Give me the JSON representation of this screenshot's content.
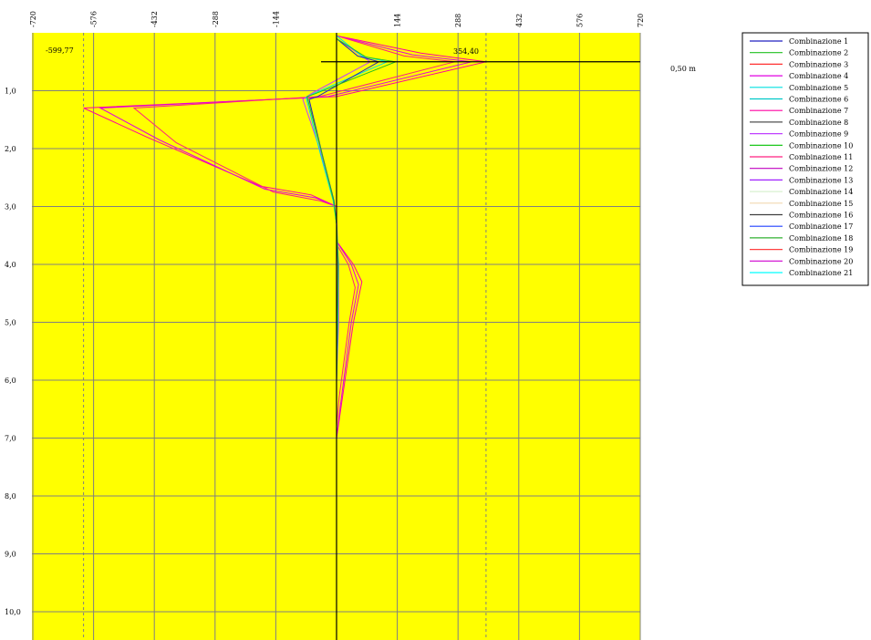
{
  "chart_data": {
    "type": "line",
    "orientation": "vertical-profile",
    "x_ticks": [
      "-720",
      "-576",
      "-432",
      "-288",
      "-144",
      "144",
      "288",
      "432",
      "576",
      "720"
    ],
    "y_ticks": [
      "1,0",
      "2,0",
      "3,0",
      "4,0",
      "5,0",
      "6,0",
      "7,0",
      "8,0",
      "9,0",
      "10,0"
    ],
    "xlim": [
      -720,
      720
    ],
    "ylim": [
      0,
      10.4
    ],
    "grid": true,
    "legend_position": "right",
    "annotations": {
      "min_label": "-599,77",
      "min_value": -599.77,
      "max_label": "354,40",
      "max_value": 354.4,
      "level_label": "0,50 m",
      "level_value": 0.5
    },
    "colors": {
      "background": "#ffff00",
      "grid": "#808080",
      "axis": "#000000",
      "guide": "#808080"
    },
    "series": [
      {
        "name": "Combinazione 1",
        "color": "#2020c0"
      },
      {
        "name": "Combinazione 2",
        "color": "#20c020"
      },
      {
        "name": "Combinazione 3",
        "color": "#ff3030"
      },
      {
        "name": "Combinazione 4",
        "color": "#e000e0"
      },
      {
        "name": "Combinazione 5",
        "color": "#00e0e0"
      },
      {
        "name": "Combinazione 6",
        "color": "#00c8c8"
      },
      {
        "name": "Combinazione 7",
        "color": "#ff00a0"
      },
      {
        "name": "Combinazione 8",
        "color": "#505050"
      },
      {
        "name": "Combinazione 9",
        "color": "#c040ff"
      },
      {
        "name": "Combinazione 10",
        "color": "#00c000"
      },
      {
        "name": "Combinazione 11",
        "color": "#ff2080"
      },
      {
        "name": "Combinazione 12",
        "color": "#c000c0"
      },
      {
        "name": "Combinazione 13",
        "color": "#a020ff"
      },
      {
        "name": "Combinazione 14",
        "color": "#d8f0d0"
      },
      {
        "name": "Combinazione 15",
        "color": "#f0d8b0"
      },
      {
        "name": "Combinazione 16",
        "color": "#404040"
      },
      {
        "name": "Combinazione 17",
        "color": "#2040ff"
      },
      {
        "name": "Combinazione 18",
        "color": "#30b030"
      },
      {
        "name": "Combinazione 19",
        "color": "#ff4040"
      },
      {
        "name": "Combinazione 20",
        "color": "#d000d0"
      },
      {
        "name": "Combinazione 21",
        "color": "#00ffff"
      }
    ],
    "curves": [
      {
        "color": "#ff00a0",
        "points": [
          [
            0,
            0.05
          ],
          [
            200,
            0.35
          ],
          [
            354.4,
            0.5
          ],
          [
            0,
            1.1
          ],
          [
            -599.77,
            1.3
          ],
          [
            -450,
            1.8
          ],
          [
            -180,
            2.65
          ],
          [
            -60,
            2.8
          ],
          [
            0,
            3.0
          ],
          [
            0,
            3.6
          ],
          [
            40,
            4.0
          ],
          [
            60,
            4.3
          ],
          [
            40,
            5.0
          ],
          [
            10,
            6.5
          ],
          [
            0,
            7.0
          ],
          [
            0,
            10.4
          ]
        ]
      },
      {
        "color": "#e000e0",
        "points": [
          [
            0,
            0.05
          ],
          [
            180,
            0.38
          ],
          [
            320,
            0.5
          ],
          [
            -20,
            1.1
          ],
          [
            -560,
            1.3
          ],
          [
            -420,
            1.85
          ],
          [
            -170,
            2.7
          ],
          [
            -50,
            2.85
          ],
          [
            0,
            3.0
          ],
          [
            0,
            3.6
          ],
          [
            35,
            4.0
          ],
          [
            52,
            4.35
          ],
          [
            35,
            5.0
          ],
          [
            8,
            6.5
          ],
          [
            0,
            7.0
          ],
          [
            0,
            10.4
          ]
        ]
      },
      {
        "color": "#ff2080",
        "points": [
          [
            0,
            0.05
          ],
          [
            160,
            0.4
          ],
          [
            280,
            0.5
          ],
          [
            -40,
            1.1
          ],
          [
            -480,
            1.3
          ],
          [
            -380,
            1.9
          ],
          [
            -150,
            2.75
          ],
          [
            -40,
            2.9
          ],
          [
            0,
            3.0
          ],
          [
            0,
            3.65
          ],
          [
            28,
            4.0
          ],
          [
            44,
            4.4
          ],
          [
            30,
            5.0
          ],
          [
            6,
            6.3
          ],
          [
            0,
            6.8
          ],
          [
            0,
            10.4
          ]
        ]
      },
      {
        "color": "#c040ff",
        "points": [
          [
            0,
            0.1
          ],
          [
            40,
            0.3
          ],
          [
            80,
            0.5
          ],
          [
            -60,
            1.05
          ],
          [
            -80,
            1.15
          ],
          [
            -40,
            2.0
          ],
          [
            -10,
            2.8
          ],
          [
            0,
            3.2
          ],
          [
            5,
            4.0
          ],
          [
            5,
            5.0
          ],
          [
            0,
            6.0
          ],
          [
            0,
            10.4
          ]
        ]
      },
      {
        "color": "#00e0e0",
        "points": [
          [
            0,
            0.05
          ],
          [
            60,
            0.4
          ],
          [
            120,
            0.5
          ],
          [
            -55,
            1.05
          ],
          [
            -72,
            1.12
          ],
          [
            -38,
            2.1
          ],
          [
            -8,
            2.9
          ],
          [
            0,
            3.3
          ],
          [
            4,
            4.0
          ],
          [
            3,
            5.0
          ],
          [
            0,
            6.0
          ],
          [
            0,
            10.4
          ]
        ]
      },
      {
        "color": "#2020c0",
        "points": [
          [
            0,
            0.1
          ],
          [
            50,
            0.4
          ],
          [
            100,
            0.5
          ],
          [
            -45,
            1.1
          ],
          [
            -65,
            1.15
          ],
          [
            -34,
            2.1
          ],
          [
            -6,
            2.9
          ],
          [
            0,
            3.3
          ],
          [
            3,
            4.0
          ],
          [
            2,
            5.0
          ],
          [
            0,
            6.0
          ],
          [
            0,
            10.4
          ]
        ]
      },
      {
        "color": "#20c020",
        "points": [
          [
            0,
            0.1
          ],
          [
            70,
            0.42
          ],
          [
            140,
            0.5
          ],
          [
            -50,
            1.05
          ],
          [
            -70,
            1.1
          ],
          [
            -36,
            2.05
          ],
          [
            -7,
            2.9
          ],
          [
            0,
            3.3
          ],
          [
            4,
            4.0
          ],
          [
            2,
            5.0
          ],
          [
            0,
            6.0
          ],
          [
            0,
            10.4
          ]
        ]
      }
    ]
  }
}
